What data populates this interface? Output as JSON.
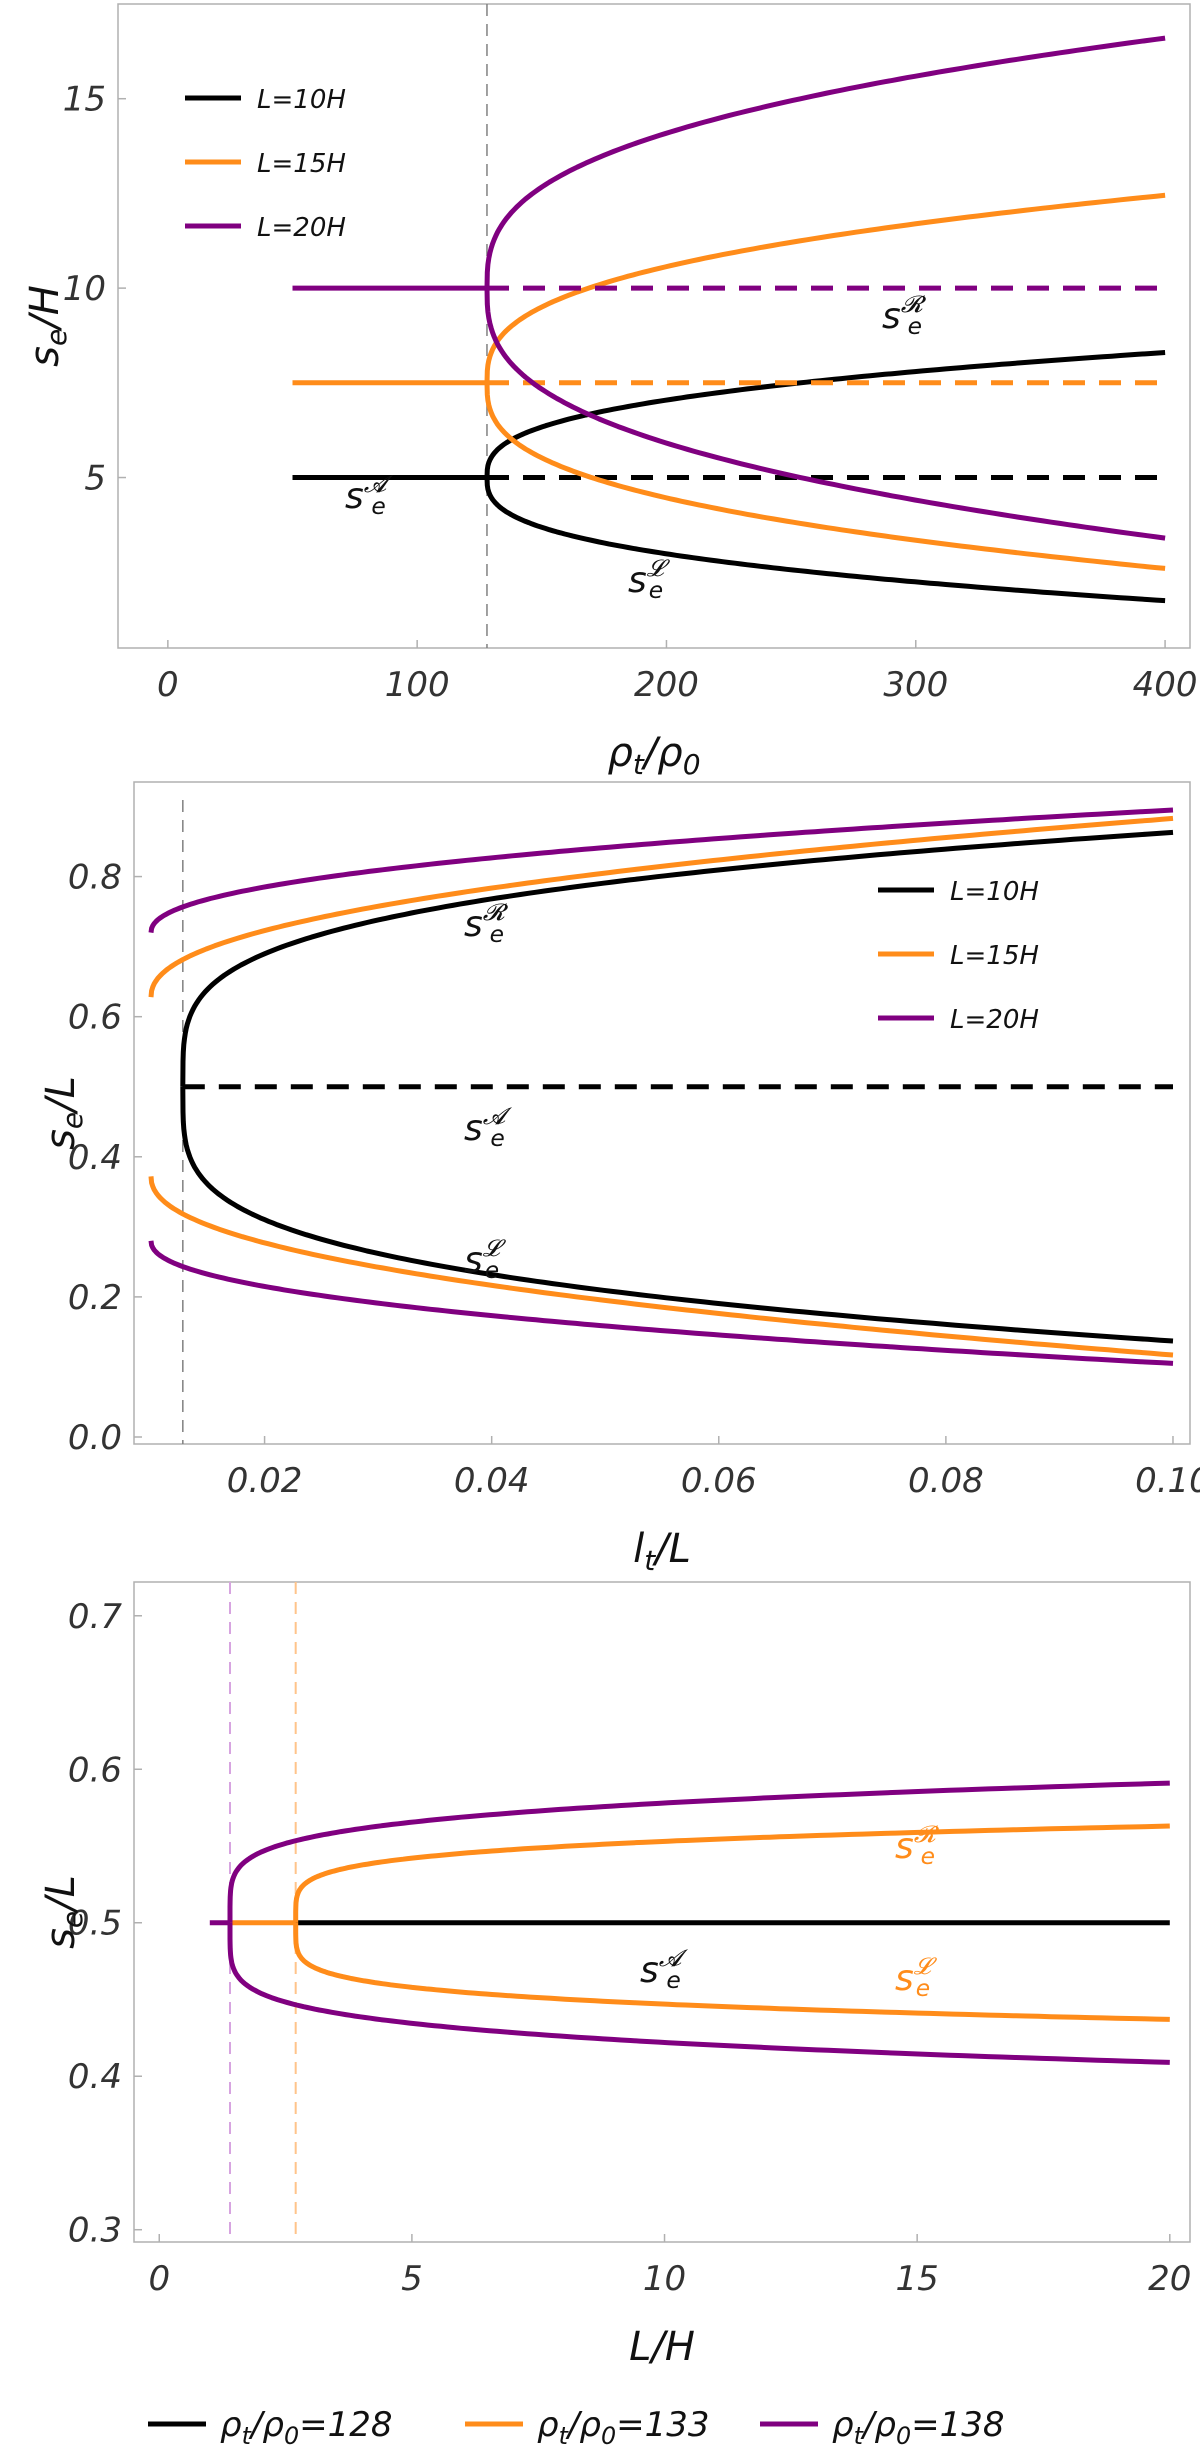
{
  "colors": {
    "black": "#000000",
    "orange": "#ff8c1a",
    "purple": "#800080",
    "frame": "#b0b0b0",
    "ref_gray": "#808080",
    "ref_purple": "#d7a4e0",
    "ref_orange": "#ffc48a"
  },
  "chart_data": [
    {
      "type": "line",
      "xlabel": "ρt/ρ0",
      "ylabel": "se/H",
      "xlim": [
        -20,
        410
      ],
      "ylim": [
        0.5,
        17.5
      ],
      "xticks": [
        0,
        100,
        200,
        300,
        400
      ],
      "yticks": [
        5,
        10,
        15
      ],
      "xtick_labels": [
        "0",
        "100",
        "200",
        "300",
        "400"
      ],
      "ytick_labels": [
        "5",
        "10",
        "15"
      ],
      "critical_x": 128,
      "legend": {
        "position": "top-left",
        "entries": [
          "L=10H",
          "L=15H",
          "L=20H"
        ]
      },
      "series": [
        {
          "name": "L=10H",
          "color": "black",
          "mid": 5,
          "x_start": 50,
          "x_end": 400,
          "right_end": 8.3,
          "left_end": 1.75
        },
        {
          "name": "L=15H",
          "color": "orange",
          "mid": 7.5,
          "x_start": 50,
          "x_end": 400,
          "right_end": 12.45,
          "left_end": 2.6
        },
        {
          "name": "L=20H",
          "color": "purple",
          "mid": 10,
          "x_start": 50,
          "x_end": 400,
          "right_end": 16.6,
          "left_end": 3.4
        }
      ],
      "annotations": [
        {
          "base": "s",
          "sub": "e",
          "sup": "𝓡"
        },
        {
          "base": "s",
          "sub": "e",
          "sup": "𝓐"
        },
        {
          "base": "s",
          "sub": "e",
          "sup": "𝓛"
        }
      ]
    },
    {
      "type": "line",
      "xlabel": "lt/L",
      "ylabel": "se/L",
      "xlim": [
        0.0085,
        0.1015
      ],
      "ylim": [
        -0.01,
        0.935
      ],
      "xticks": [
        0.02,
        0.04,
        0.06,
        0.08,
        0.1
      ],
      "yticks": [
        0.0,
        0.2,
        0.4,
        0.6,
        0.8
      ],
      "xtick_labels": [
        "0.02",
        "0.04",
        "0.06",
        "0.08",
        "0.10"
      ],
      "ytick_labels": [
        "0.0",
        "0.2",
        "0.4",
        "0.6",
        "0.8"
      ],
      "critical_x": 0.0128,
      "legend": {
        "position": "top-right",
        "entries": [
          "L=10H",
          "L=15H",
          "L=20H"
        ]
      },
      "series": [
        {
          "name": "L=10H",
          "color": "black",
          "x_start": 0.0128,
          "x_end": 0.1,
          "upper_end": 0.863,
          "lower_end": 0.137,
          "abscissa_dashed": 0.5
        },
        {
          "name": "L=15H",
          "color": "orange",
          "x_start": 0.01,
          "x_end": 0.1,
          "upper_start": 0.628,
          "upper_end": 0.883,
          "lower_start": 0.372,
          "lower_end": 0.117
        },
        {
          "name": "L=20H",
          "color": "purple",
          "x_start": 0.01,
          "x_end": 0.1,
          "upper_start": 0.72,
          "upper_end": 0.895,
          "lower_start": 0.28,
          "lower_end": 0.105
        }
      ],
      "annotations": [
        {
          "base": "s",
          "sub": "e",
          "sup": "𝓡"
        },
        {
          "base": "s",
          "sub": "e",
          "sup": "𝓐"
        },
        {
          "base": "s",
          "sub": "e",
          "sup": "𝓛"
        }
      ]
    },
    {
      "type": "line",
      "xlabel": "L/H",
      "ylabel": "se/L",
      "xlim": [
        -0.5,
        20.4
      ],
      "ylim": [
        0.292,
        0.722
      ],
      "xticks": [
        0,
        5,
        10,
        15,
        20
      ],
      "yticks": [
        0.3,
        0.4,
        0.5,
        0.6,
        0.7
      ],
      "xtick_labels": [
        "0",
        "5",
        "10",
        "15",
        "20"
      ],
      "ytick_labels": [
        "0.3",
        "0.4",
        "0.5",
        "0.6",
        "0.7"
      ],
      "legend": {
        "position": "bottom",
        "entries": [
          "ρt/ρ0=128",
          "ρt/ρ0=133",
          "ρt/ρ0=138"
        ]
      },
      "series": [
        {
          "name": "ρt/ρ0=128",
          "color": "black",
          "x_start": 2.7,
          "x_end": 20,
          "value": 0.5
        },
        {
          "name": "ρt/ρ0=133",
          "color": "orange",
          "x_start": 1.4,
          "x_crit": 2.7,
          "x_end": 20,
          "upper_end": 0.563,
          "lower_end": 0.437
        },
        {
          "name": "ρt/ρ0=138",
          "color": "purple",
          "x_start": 1.0,
          "x_crit": 1.4,
          "x_end": 20,
          "upper_end": 0.591,
          "lower_end": 0.409
        }
      ],
      "critical_x": [
        1.4,
        2.7
      ],
      "annotations": [
        {
          "base": "s",
          "sub": "e",
          "sup": "𝓐"
        },
        {
          "base": "s",
          "sub": "e",
          "sup": "𝓡"
        },
        {
          "base": "s",
          "sub": "e",
          "sup": "𝓛"
        }
      ]
    }
  ]
}
